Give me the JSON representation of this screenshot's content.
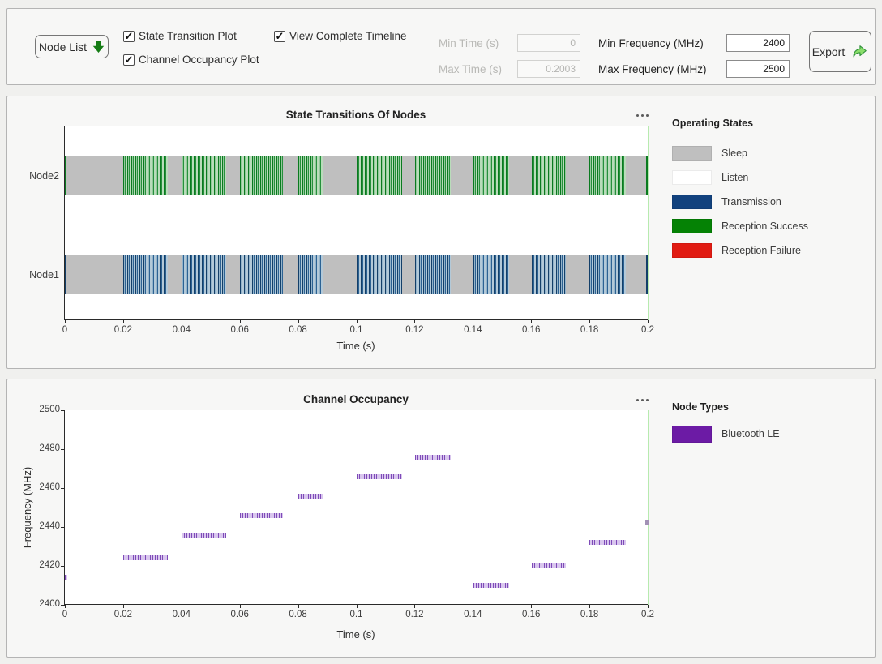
{
  "toolbar": {
    "node_list_label": "Node List",
    "checkboxes": [
      {
        "label": "State Transition Plot",
        "checked": true
      },
      {
        "label": "Channel Occupancy Plot",
        "checked": true
      },
      {
        "label": "View Complete Timeline",
        "checked": true
      }
    ],
    "fields": [
      {
        "label": "Min Time (s)",
        "value": "0",
        "disabled": true
      },
      {
        "label": "Max Time (s)",
        "value": "0.2003",
        "disabled": true
      },
      {
        "label": "Min Frequency (MHz)",
        "value": "2400",
        "disabled": false
      },
      {
        "label": "Max Frequency (MHz)",
        "value": "2500",
        "disabled": false
      }
    ],
    "export_label": "Export"
  },
  "chart_data": [
    {
      "type": "timeline-state",
      "title": "State Transitions Of Nodes",
      "xlabel": "Time (s)",
      "x_range": [
        0,
        0.2
      ],
      "x_ticks": [
        {
          "v": 0,
          "label": "0"
        },
        {
          "v": 0.02,
          "label": "0.02"
        },
        {
          "v": 0.04,
          "label": "0.04"
        },
        {
          "v": 0.06,
          "label": "0.06"
        },
        {
          "v": 0.08,
          "label": "0.08"
        },
        {
          "v": 0.1,
          "label": "0.1"
        },
        {
          "v": 0.12,
          "label": "0.12"
        },
        {
          "v": 0.14,
          "label": "0.14"
        },
        {
          "v": 0.16,
          "label": "0.16"
        },
        {
          "v": 0.18,
          "label": "0.18"
        },
        {
          "v": 0.2,
          "label": "0.2"
        }
      ],
      "rows": [
        "Node1",
        "Node2"
      ],
      "legend": {
        "title": "Operating States",
        "items": [
          {
            "label": "Sleep",
            "color": "#bfbfbf"
          },
          {
            "label": "Listen",
            "color": "#ffffff"
          },
          {
            "label": "Transmission",
            "color": "#12427e"
          },
          {
            "label": "Reception Success",
            "color": "#058205"
          },
          {
            "label": "Reception Failure",
            "color": "#e11b12"
          }
        ]
      },
      "series": [
        {
          "row": "Node2",
          "base_state": "Sleep",
          "active_state": "Reception Success",
          "intervals": [
            [
              0.0201,
              0.0352
            ],
            [
              0.0401,
              0.0554
            ],
            [
              0.0601,
              0.0748
            ],
            [
              0.0801,
              0.0885
            ],
            [
              0.1001,
              0.1158
            ],
            [
              0.1201,
              0.1324
            ],
            [
              0.1401,
              0.1525
            ],
            [
              0.1601,
              0.1719
            ],
            [
              0.1801,
              0.1926
            ]
          ]
        },
        {
          "row": "Node1",
          "base_state": "Sleep",
          "active_state": "Transmission",
          "intervals": [
            [
              0.0201,
              0.0352
            ],
            [
              0.0401,
              0.0554
            ],
            [
              0.0601,
              0.0748
            ],
            [
              0.0801,
              0.0885
            ],
            [
              0.1001,
              0.1158
            ],
            [
              0.1201,
              0.1324
            ],
            [
              0.1401,
              0.1525
            ],
            [
              0.1601,
              0.1719
            ],
            [
              0.1801,
              0.1926
            ]
          ]
        }
      ],
      "sleep_span": [
        0,
        0.2003
      ],
      "timeline_marker_t": 0.2003,
      "timeline_marker_color": "#b7eaaf"
    },
    {
      "type": "scatter-segments",
      "title": "Channel Occupancy",
      "xlabel": "Time (s)",
      "ylabel": "Frequency (MHz)",
      "x_range": [
        0,
        0.2
      ],
      "y_range": [
        2400,
        2500
      ],
      "x_ticks": [
        {
          "v": 0,
          "label": "0"
        },
        {
          "v": 0.02,
          "label": "0.02"
        },
        {
          "v": 0.04,
          "label": "0.04"
        },
        {
          "v": 0.06,
          "label": "0.06"
        },
        {
          "v": 0.08,
          "label": "0.08"
        },
        {
          "v": 0.1,
          "label": "0.1"
        },
        {
          "v": 0.12,
          "label": "0.12"
        },
        {
          "v": 0.14,
          "label": "0.14"
        },
        {
          "v": 0.16,
          "label": "0.16"
        },
        {
          "v": 0.18,
          "label": "0.18"
        },
        {
          "v": 0.2,
          "label": "0.2"
        }
      ],
      "y_ticks": [
        {
          "v": 2400,
          "label": "2400"
        },
        {
          "v": 2420,
          "label": "2420"
        },
        {
          "v": 2440,
          "label": "2440"
        },
        {
          "v": 2460,
          "label": "2460"
        },
        {
          "v": 2480,
          "label": "2480"
        },
        {
          "v": 2500,
          "label": "2500"
        }
      ],
      "legend": {
        "title": "Node Types",
        "items": [
          {
            "label": "Bluetooth LE",
            "color": "#6c1ba5"
          }
        ]
      },
      "segments": [
        {
          "t": [
            0.0201,
            0.0352
          ],
          "freq": 2424
        },
        {
          "t": [
            0.0401,
            0.0554
          ],
          "freq": 2436
        },
        {
          "t": [
            0.0601,
            0.0748
          ],
          "freq": 2446
        },
        {
          "t": [
            0.0801,
            0.0885
          ],
          "freq": 2456
        },
        {
          "t": [
            0.1001,
            0.1158
          ],
          "freq": 2466
        },
        {
          "t": [
            0.1201,
            0.1324
          ],
          "freq": 2476
        },
        {
          "t": [
            0.1401,
            0.1525
          ],
          "freq": 2410
        },
        {
          "t": [
            0.1601,
            0.1719
          ],
          "freq": 2420
        },
        {
          "t": [
            0.1801,
            0.1926
          ],
          "freq": 2432
        }
      ],
      "partial_edge_marks": [
        {
          "t": 0,
          "freq": 2414
        },
        {
          "t": 0.2003,
          "freq": 2442
        }
      ],
      "timeline_marker_t": 0.2003,
      "timeline_marker_color": "#b7eaaf"
    }
  ]
}
